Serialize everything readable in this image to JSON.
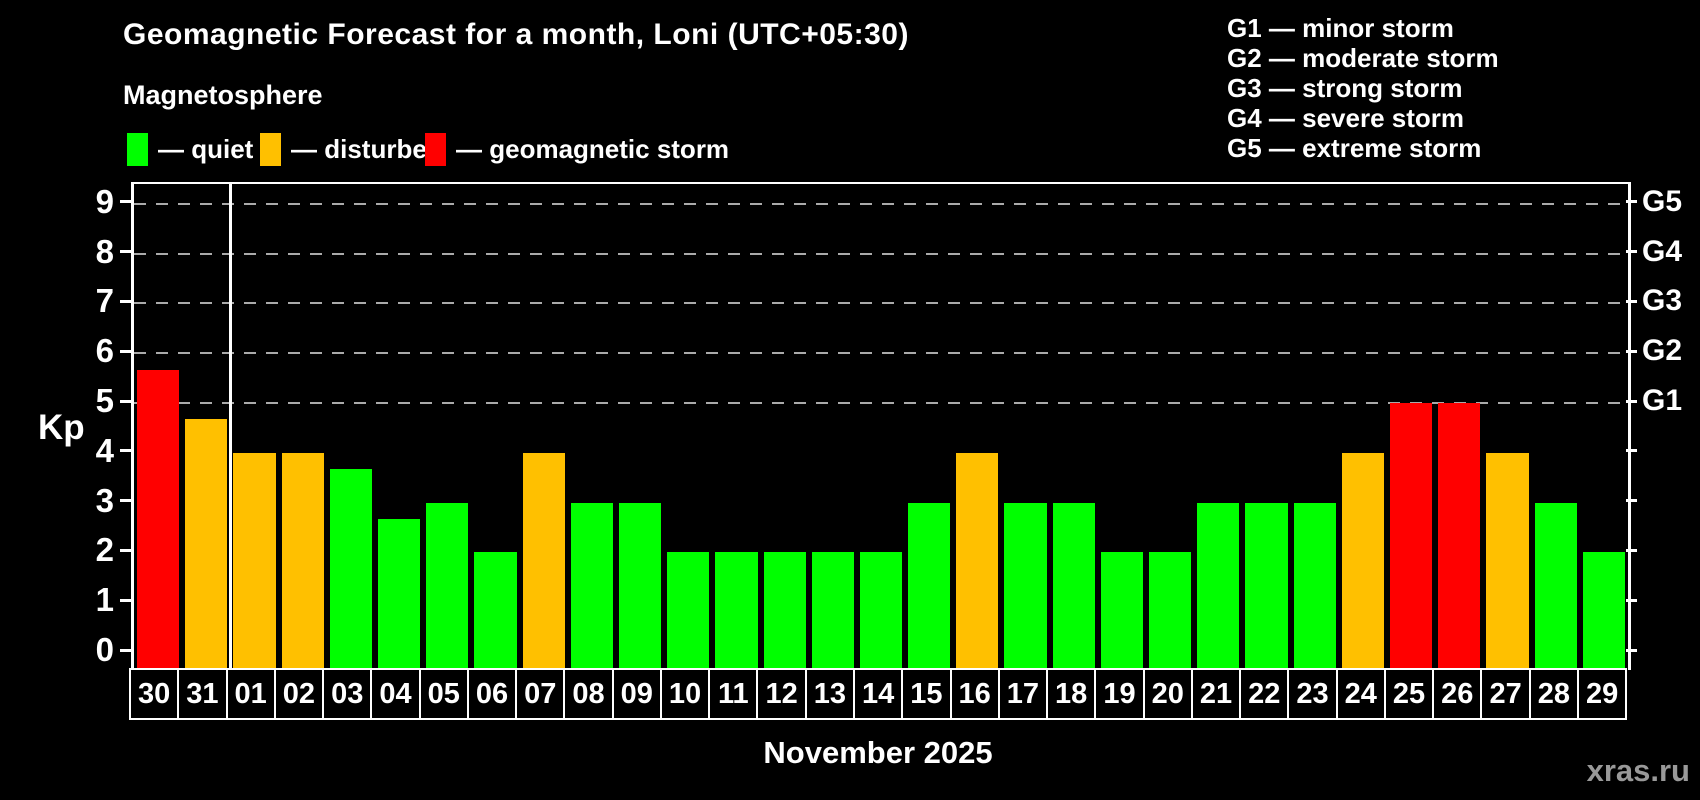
{
  "title": "Geomagnetic Forecast for a month, Loni (UTC+05:30)",
  "subtitle": "Magnetosphere",
  "legend": {
    "items": [
      {
        "key": "quiet",
        "label": "— quiet",
        "color": "#00ff00"
      },
      {
        "key": "disturbed",
        "label": "— disturbed",
        "color": "#ffc000"
      },
      {
        "key": "storm",
        "label": "— geomagnetic storm",
        "color": "#ff0000"
      }
    ]
  },
  "storm_scale_legend": {
    "g1": "G1 — minor storm",
    "g2": "G2 — moderate storm",
    "g3": "G3 — strong storm",
    "g4": "G4 — severe storm",
    "g5": "G5 — extreme storm"
  },
  "axis": {
    "y_title": "Kp",
    "y_ticks": [
      0,
      1,
      2,
      3,
      4,
      5,
      6,
      7,
      8,
      9
    ],
    "right_labels": [
      {
        "kp": 5,
        "label": "G1"
      },
      {
        "kp": 6,
        "label": "G2"
      },
      {
        "kp": 7,
        "label": "G3"
      },
      {
        "kp": 8,
        "label": "G4"
      },
      {
        "kp": 9,
        "label": "G5"
      }
    ]
  },
  "x_axis_title": "November 2025",
  "watermark": "xras.ru",
  "chart_data": {
    "type": "bar",
    "title": "Geomagnetic Forecast for a month, Loni (UTC+05:30)",
    "xlabel": "November 2025",
    "ylabel": "Kp",
    "ylim": [
      0,
      9
    ],
    "grid": "dashed horizontal gridlines at Kp 5,6,7,8,9 (G1–G5 levels)",
    "legend_position": "top",
    "month_separator_after_category_index": 1,
    "colors": {
      "quiet": "#00ff00",
      "disturbed": "#ffc000",
      "storm": "#ff0000"
    },
    "categories": [
      "30",
      "31",
      "01",
      "02",
      "03",
      "04",
      "05",
      "06",
      "07",
      "08",
      "09",
      "10",
      "11",
      "12",
      "13",
      "14",
      "15",
      "16",
      "17",
      "18",
      "19",
      "20",
      "21",
      "22",
      "23",
      "24",
      "25",
      "26",
      "27",
      "28",
      "29"
    ],
    "values": [
      5.67,
      4.67,
      4,
      4,
      3.67,
      2.67,
      3,
      2,
      4,
      3,
      3,
      2,
      2,
      2,
      2,
      2,
      3,
      4,
      3,
      3,
      2,
      2,
      3,
      3,
      3,
      4,
      5,
      5,
      4,
      3,
      2
    ],
    "statuses": [
      "storm",
      "disturbed",
      "disturbed",
      "disturbed",
      "quiet",
      "quiet",
      "quiet",
      "quiet",
      "disturbed",
      "quiet",
      "quiet",
      "quiet",
      "quiet",
      "quiet",
      "quiet",
      "quiet",
      "quiet",
      "disturbed",
      "quiet",
      "quiet",
      "quiet",
      "quiet",
      "quiet",
      "quiet",
      "quiet",
      "disturbed",
      "storm",
      "storm",
      "disturbed",
      "quiet",
      "quiet"
    ]
  }
}
